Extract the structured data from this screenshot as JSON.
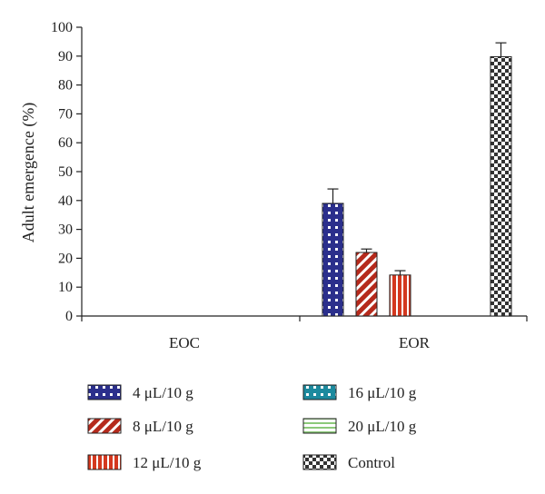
{
  "chart_data": {
    "type": "bar",
    "title": "",
    "xlabel": "",
    "ylabel": "Adult emergence (%)",
    "ylim": [
      0,
      100
    ],
    "yticks": [
      0,
      10,
      20,
      30,
      40,
      50,
      60,
      70,
      80,
      90,
      100
    ],
    "categories": [
      "EOC",
      "EOR"
    ],
    "grid": false,
    "legend_position": "bottom",
    "series": [
      {
        "name": "4 μL/10 g",
        "values": [
          0,
          39
        ],
        "errors": [
          0,
          5
        ],
        "color": "#2b2f8c",
        "pattern": "squares"
      },
      {
        "name": "8 μL/10 g",
        "values": [
          0,
          22
        ],
        "errors": [
          0,
          1.2
        ],
        "color": "#b52a1c",
        "pattern": "diagonal"
      },
      {
        "name": "12 μL/10 g",
        "values": [
          0,
          14.2
        ],
        "errors": [
          0,
          1.5
        ],
        "color": "#d4381f",
        "pattern": "vertical"
      },
      {
        "name": "16 μL/10 g",
        "values": [
          0,
          0
        ],
        "errors": [
          0,
          0
        ],
        "color": "#1c8a9e",
        "pattern": "squares"
      },
      {
        "name": "20 μL/10 g",
        "values": [
          0,
          0
        ],
        "errors": [
          0,
          0
        ],
        "color": "#8cc97a",
        "pattern": "horizontal"
      },
      {
        "name": "Control",
        "values": [
          0,
          89.8
        ],
        "errors": [
          0,
          4.8
        ],
        "color": "#333333",
        "pattern": "checker"
      }
    ]
  }
}
